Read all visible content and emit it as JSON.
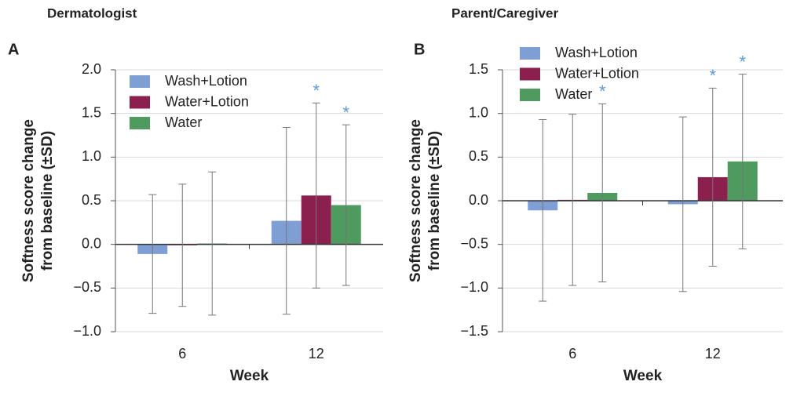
{
  "chart_data": [
    {
      "type": "bar",
      "heading": "Dermatologist",
      "panel_label": "A",
      "ylabel": [
        "Softness score change",
        "from baseline (±SD)"
      ],
      "xlabel": "Week",
      "categories": [
        "6",
        "12"
      ],
      "series": [
        {
          "name": "Wash+Lotion",
          "color": "#7f9fd4",
          "values": [
            -0.11,
            0.27
          ],
          "errors": [
            0.68,
            1.07
          ]
        },
        {
          "name": "Water+Lotion",
          "color": "#8b1f4e",
          "values": [
            -0.01,
            0.56
          ],
          "errors": [
            0.7,
            1.06
          ]
        },
        {
          "name": "Water",
          "color": "#4f9a5e",
          "values": [
            0.01,
            0.45
          ],
          "errors": [
            0.82,
            0.92
          ]
        }
      ],
      "annotations": [
        {
          "label": "*",
          "series": 1,
          "category": 1
        },
        {
          "label": "*",
          "series": 2,
          "category": 1
        }
      ],
      "ylim": [
        -1.0,
        2.0
      ],
      "yticks": [
        {
          "value": -1.0,
          "label": "−1.0"
        },
        {
          "value": -0.5,
          "label": "−0.5"
        },
        {
          "value": 0.0,
          "label": "0.0"
        },
        {
          "value": 0.5,
          "label": "0.5"
        },
        {
          "value": 1.0,
          "label": "1.0"
        },
        {
          "value": 1.5,
          "label": "1.5"
        },
        {
          "value": 2.0,
          "label": "2.0"
        }
      ],
      "grid": true,
      "legend": "upper left",
      "annotation_color": "#5b9bd5"
    },
    {
      "type": "bar",
      "heading": "Parent/Caregiver",
      "panel_label": "B",
      "ylabel": [
        "Softness score change",
        "from baseline (±SD)"
      ],
      "xlabel": "Week",
      "categories": [
        "6",
        "12"
      ],
      "series": [
        {
          "name": "Wash+Lotion",
          "color": "#7f9fd4",
          "values": [
            -0.11,
            -0.04
          ],
          "errors": [
            1.04,
            1.0
          ]
        },
        {
          "name": "Water+Lotion",
          "color": "#8b1f4e",
          "values": [
            0.01,
            0.27
          ],
          "errors": [
            0.98,
            1.02
          ]
        },
        {
          "name": "Water",
          "color": "#4f9a5e",
          "values": [
            0.09,
            0.45
          ],
          "errors": [
            1.02,
            1.0
          ]
        }
      ],
      "annotations": [
        {
          "label": "*",
          "series": 2,
          "category": 0
        },
        {
          "label": "*",
          "series": 1,
          "category": 1
        },
        {
          "label": "*",
          "series": 2,
          "category": 1
        }
      ],
      "ylim": [
        -1.5,
        1.5
      ],
      "yticks": [
        {
          "value": -1.5,
          "label": "−1.5"
        },
        {
          "value": -1.0,
          "label": "−1.0"
        },
        {
          "value": -0.5,
          "label": "−0.5"
        },
        {
          "value": 0.0,
          "label": "0.0"
        },
        {
          "value": 0.5,
          "label": "0.5"
        },
        {
          "value": 1.0,
          "label": "1.0"
        },
        {
          "value": 1.5,
          "label": "1.5"
        }
      ],
      "grid": true,
      "legend": "upper left",
      "annotation_color": "#5b9bd5"
    }
  ]
}
